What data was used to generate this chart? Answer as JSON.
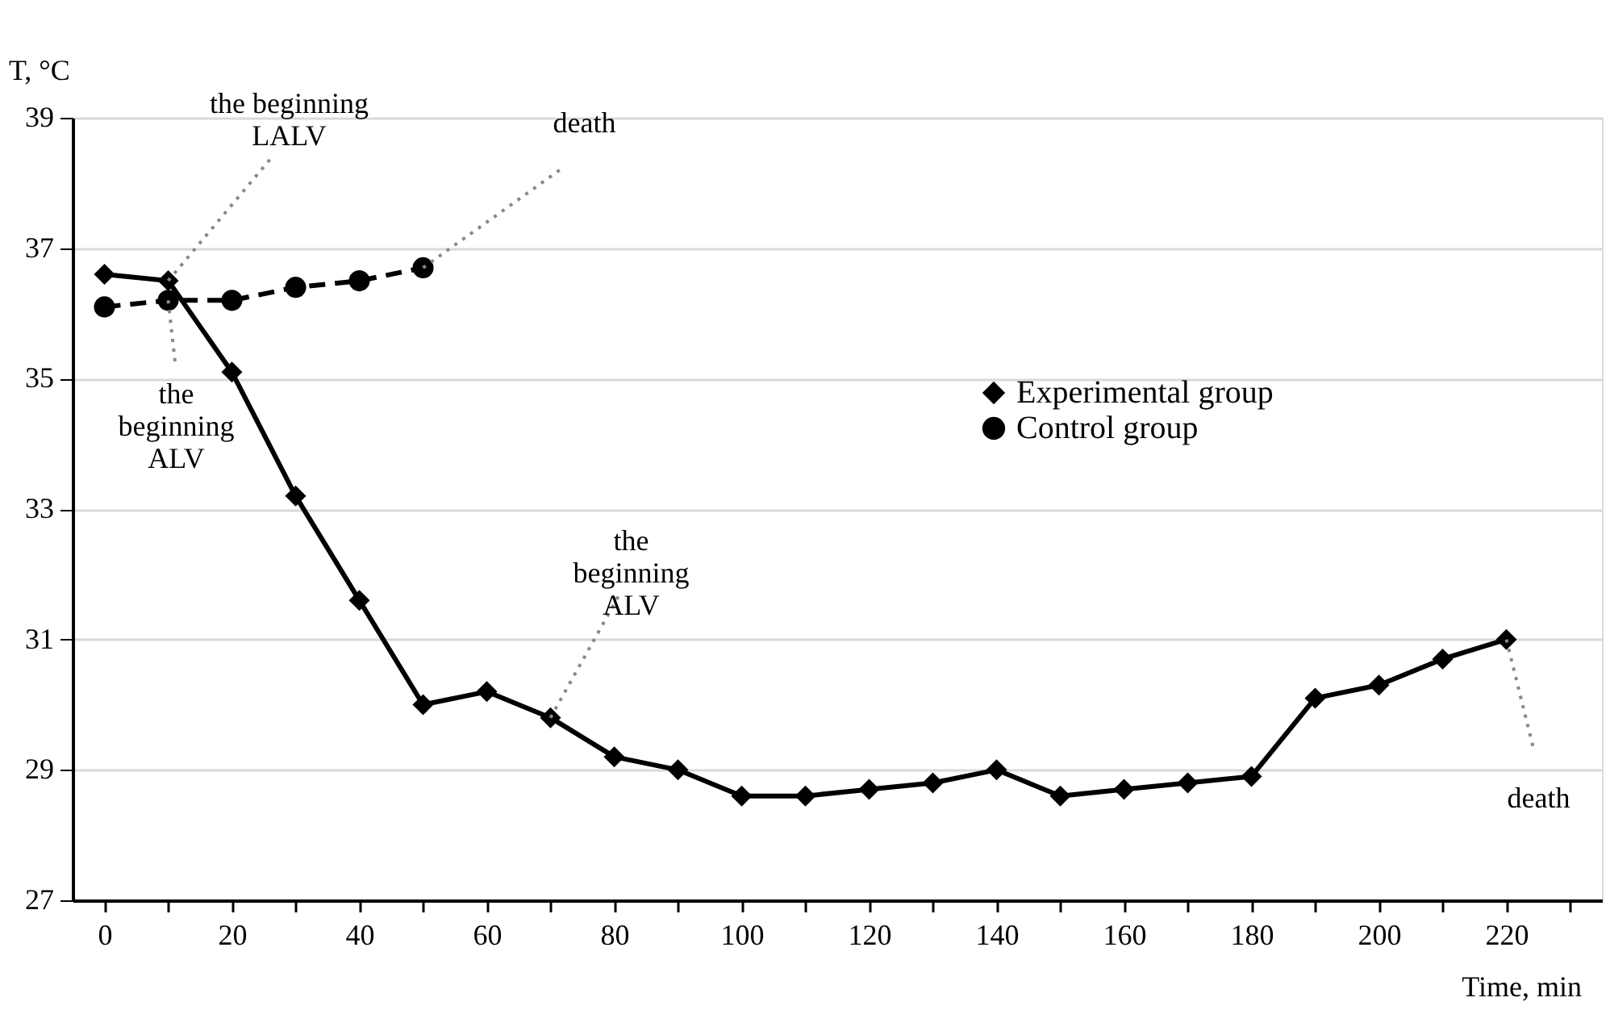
{
  "chart_data": {
    "type": "line",
    "xlabel": "Time, min",
    "ylabel": "T, °C",
    "xlim": [
      -5,
      235
    ],
    "xticks": [
      0,
      {
        "value": 10,
        "label": null
      },
      20,
      {
        "value": 30,
        "label": null
      },
      40,
      {
        "value": 50,
        "label": null
      },
      60,
      {
        "value": 70,
        "label": null
      },
      80,
      {
        "value": 90,
        "label": null
      },
      100,
      {
        "value": 110,
        "label": null
      },
      120,
      {
        "value": 130,
        "label": null
      },
      140,
      {
        "value": 150,
        "label": null
      },
      160,
      {
        "value": 170,
        "label": null
      },
      180,
      {
        "value": 190,
        "label": null
      },
      200,
      {
        "value": 210,
        "label": null
      },
      220,
      {
        "value": 230,
        "label": null
      }
    ],
    "ylim": [
      27,
      39
    ],
    "yticks": [
      27,
      29,
      31,
      33,
      35,
      37,
      39
    ],
    "grid": "y",
    "legend": "right",
    "series": [
      {
        "name": "Experimental group",
        "color": "#000000",
        "marker": "diamond",
        "line_style": "solid",
        "x": [
          0,
          10,
          20,
          30,
          40,
          50,
          60,
          70,
          80,
          90,
          100,
          110,
          120,
          130,
          140,
          150,
          160,
          170,
          180,
          190,
          200,
          210,
          220
        ],
        "values": [
          36.6,
          36.5,
          35.1,
          33.2,
          31.6,
          30.0,
          30.2,
          29.8,
          29.2,
          29.0,
          28.6,
          28.6,
          28.7,
          28.8,
          29.0,
          28.6,
          28.7,
          28.8,
          28.9,
          30.1,
          30.3,
          30.7,
          31.0
        ]
      },
      {
        "name": "Control group",
        "color": "#000000",
        "marker": "circle",
        "line_style": "dashed",
        "x": [
          0,
          10,
          20,
          30,
          40,
          50
        ],
        "values": [
          36.1,
          36.2,
          36.2,
          36.4,
          36.5,
          36.7
        ]
      }
    ],
    "annotations": [
      {
        "text": "the beginning\nLALV",
        "x": 10,
        "y": 36.5
      },
      {
        "text": "the\nbeginning\nALV",
        "x": 10,
        "y": 36.2
      },
      {
        "text": "death",
        "x": 50,
        "y": 36.7
      },
      {
        "text": "the\nbeginning\nALV",
        "x": 70,
        "y": 29.8
      },
      {
        "text": "death",
        "x": 220,
        "y": 31.0
      }
    ]
  }
}
